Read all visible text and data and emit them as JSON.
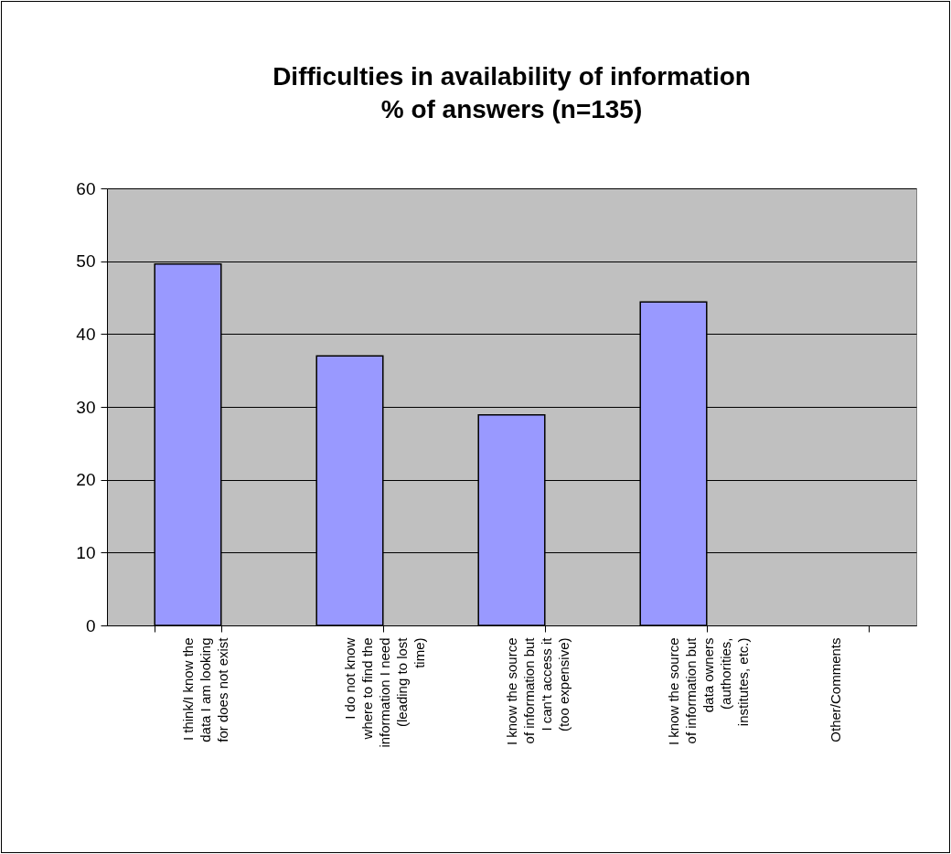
{
  "chart_data": {
    "type": "bar",
    "title": "Difficulties in availability of information",
    "subtitle": "% of answers (n=135)",
    "categories": [
      "I think/I know the data I am looking for does not exist",
      "I do not know where to find the information I need (leading to lost time)",
      "I know the source of information but I can't access it (too expensive)",
      "I know the source of information but data owners (authorities, institutes, etc.)",
      "Other/Comments"
    ],
    "values": [
      49.6,
      37.0,
      28.9,
      44.4,
      null
    ],
    "color": "#9999ff",
    "ylim": [
      0,
      60
    ],
    "yticks": [
      0,
      10,
      20,
      30,
      40,
      50,
      60
    ],
    "grid": "y"
  }
}
